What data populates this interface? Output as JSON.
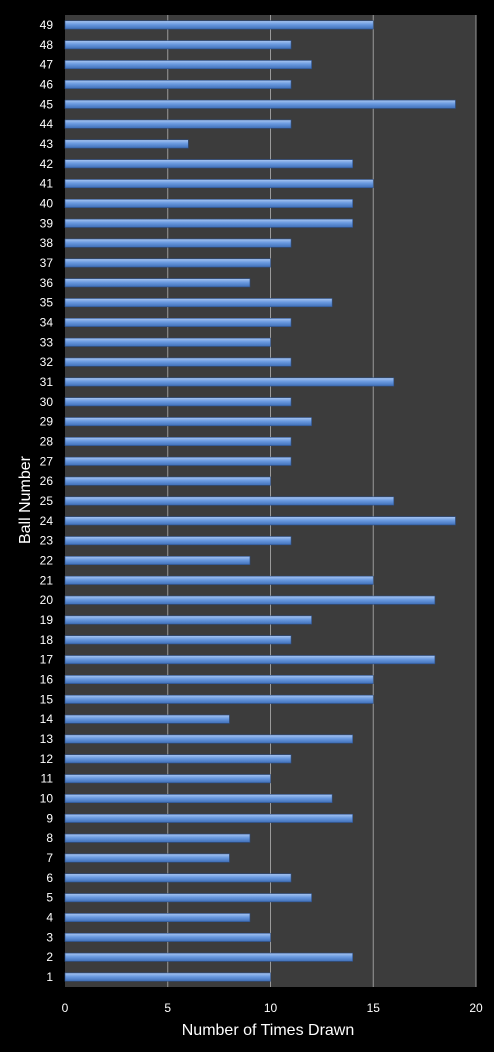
{
  "chart_data": {
    "type": "bar",
    "orientation": "horizontal",
    "xlabel": "Number of Times Drawn",
    "ylabel": "Ball Number",
    "xlim": [
      0,
      20
    ],
    "xticks": [
      "0",
      "5",
      "10",
      "15",
      "20"
    ],
    "grid": "vertical",
    "categories": [
      "1",
      "2",
      "3",
      "4",
      "5",
      "6",
      "7",
      "8",
      "9",
      "10",
      "11",
      "12",
      "13",
      "14",
      "15",
      "16",
      "17",
      "18",
      "19",
      "20",
      "21",
      "22",
      "23",
      "24",
      "25",
      "26",
      "27",
      "28",
      "29",
      "30",
      "31",
      "32",
      "33",
      "34",
      "35",
      "36",
      "37",
      "38",
      "39",
      "40",
      "41",
      "42",
      "43",
      "44",
      "45",
      "46",
      "47",
      "48",
      "49"
    ],
    "values": [
      10,
      14,
      10,
      9,
      12,
      11,
      8,
      9,
      14,
      13,
      10,
      11,
      14,
      8,
      15,
      15,
      18,
      11,
      12,
      18,
      15,
      9,
      11,
      19,
      16,
      10,
      11,
      11,
      12,
      11,
      16,
      11,
      10,
      11,
      13,
      9,
      10,
      11,
      14,
      14,
      15,
      14,
      6,
      11,
      19,
      11,
      12,
      11,
      15
    ],
    "colors": {
      "background": "#000000",
      "plot_area": "#3c3c3c",
      "bar": "#5d8fd6",
      "gridline": "#9a9a9a",
      "text": "#ffffff"
    }
  }
}
